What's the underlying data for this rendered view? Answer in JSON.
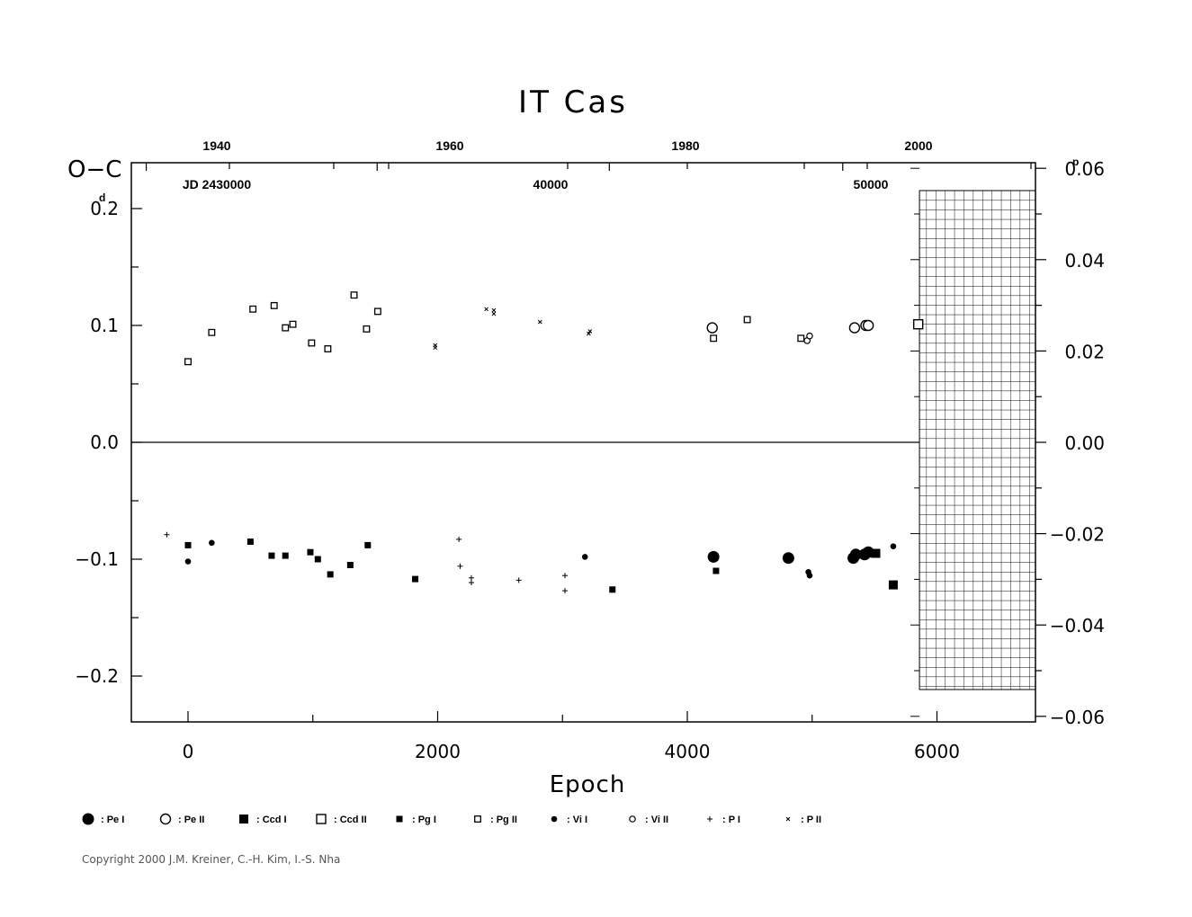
{
  "chart_data": {
    "type": "scatter",
    "title": "IT  Cas",
    "xlabel": "Epoch",
    "ylabel": "O−C",
    "ylabel_unit": "d",
    "xlim": [
      -450,
      6750
    ],
    "ylim": [
      -0.24,
      0.24
    ],
    "x_ticks": [
      "0",
      "2000",
      "4000",
      "6000"
    ],
    "y_ticks": [
      "0.ᵈ 2",
      "0.1",
      "0.0",
      "−0.1",
      "−0.2"
    ],
    "y_tick_values": [
      0.2,
      0.1,
      0.0,
      -0.1,
      -0.2
    ],
    "y_right_unit": "p",
    "y_right_ticks": [
      "0.06",
      "0.04",
      "0.02",
      "0.00",
      "−0.02",
      "−0.04",
      "−0.06"
    ],
    "y_right_values": [
      0.06,
      0.04,
      0.02,
      0.0,
      -0.02,
      -0.04,
      -0.06
    ],
    "top_year_ticks": [
      "1940",
      "1960",
      "1980",
      "2000"
    ],
    "top_year_epochs": [
      350,
      2200,
      4060,
      5930
    ],
    "top_jd_ticks": [
      "JD  2430000",
      "40000",
      "50000"
    ],
    "top_jd_epochs": [
      350,
      2900,
      5450
    ],
    "zero_line": true,
    "shaded_region_epochs": [
      5860,
      6810
    ],
    "series": [
      {
        "name": ": Pe  I",
        "marker": "big-filled-circle",
        "points": [
          [
            4210,
            -0.098
          ],
          [
            4810,
            -0.099
          ],
          [
            5330,
            -0.099
          ],
          [
            5350,
            -0.096
          ],
          [
            5420,
            -0.096
          ],
          [
            5450,
            -0.094
          ]
        ]
      },
      {
        "name": ": Pe  II",
        "marker": "big-open-circle",
        "points": [
          [
            4200,
            0.098
          ],
          [
            5340,
            0.098
          ],
          [
            5430,
            0.1
          ],
          [
            5450,
            0.1
          ]
        ]
      },
      {
        "name": ": Ccd  I",
        "marker": "big-filled-square",
        "points": [
          [
            5510,
            -0.095
          ],
          [
            5650,
            -0.122
          ]
        ]
      },
      {
        "name": ": Ccd  II",
        "marker": "big-open-square",
        "points": [
          [
            5850,
            0.101
          ]
        ]
      },
      {
        "name": ": Pg  I",
        "marker": "small-filled-square",
        "points": [
          [
            0,
            -0.088
          ],
          [
            500,
            -0.085
          ],
          [
            670,
            -0.097
          ],
          [
            780,
            -0.097
          ],
          [
            980,
            -0.094
          ],
          [
            1040,
            -0.1
          ],
          [
            1140,
            -0.113
          ],
          [
            1300,
            -0.105
          ],
          [
            1440,
            -0.088
          ],
          [
            1820,
            -0.117
          ],
          [
            3400,
            -0.126
          ],
          [
            4230,
            -0.11
          ]
        ]
      },
      {
        "name": ": Pg  II",
        "marker": "small-open-square",
        "points": [
          [
            0,
            0.069
          ],
          [
            190,
            0.094
          ],
          [
            520,
            0.114
          ],
          [
            690,
            0.117
          ],
          [
            780,
            0.098
          ],
          [
            840,
            0.101
          ],
          [
            990,
            0.085
          ],
          [
            1120,
            0.08
          ],
          [
            1330,
            0.126
          ],
          [
            1430,
            0.097
          ],
          [
            1520,
            0.112
          ],
          [
            4210,
            0.089
          ],
          [
            4480,
            0.105
          ],
          [
            4910,
            0.089
          ]
        ]
      },
      {
        "name": ": Vi  I",
        "marker": "small-filled-circle",
        "points": [
          [
            0,
            -0.102
          ],
          [
            190,
            -0.086
          ],
          [
            3180,
            -0.098
          ],
          [
            4970,
            -0.111
          ],
          [
            4980,
            -0.114
          ],
          [
            5650,
            -0.089
          ]
        ]
      },
      {
        "name": ": Vi  II",
        "marker": "small-open-circle",
        "points": [
          [
            4960,
            0.087
          ],
          [
            4980,
            0.091
          ]
        ]
      },
      {
        "name": ": P  I",
        "marker": "plus",
        "points": [
          [
            -170,
            -0.079
          ],
          [
            2170,
            -0.083
          ],
          [
            2180,
            -0.106
          ],
          [
            2270,
            -0.116
          ],
          [
            2270,
            -0.12
          ],
          [
            2650,
            -0.118
          ],
          [
            3020,
            -0.114
          ],
          [
            3020,
            -0.127
          ]
        ]
      },
      {
        "name": ": P  II",
        "marker": "cross",
        "points": [
          [
            1980,
            0.081
          ],
          [
            1980,
            0.083
          ],
          [
            2390,
            0.114
          ],
          [
            2450,
            0.11
          ],
          [
            2450,
            0.113
          ],
          [
            2820,
            0.103
          ],
          [
            3220,
            0.095
          ],
          [
            3210,
            0.093
          ]
        ]
      }
    ]
  },
  "copyright": "Copyright 2000 J.M. Kreiner, C.-H. Kim, I.-S. Nha"
}
